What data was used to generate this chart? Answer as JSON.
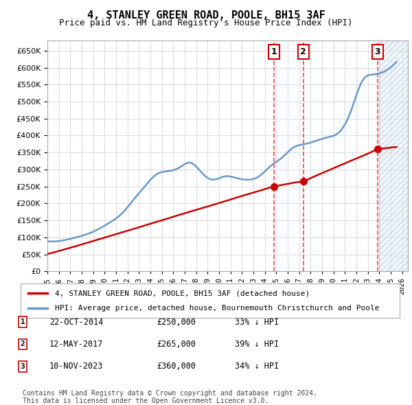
{
  "title": "4, STANLEY GREEN ROAD, POOLE, BH15 3AF",
  "subtitle": "Price paid vs. HM Land Registry's House Price Index (HPI)",
  "ylabel": "",
  "ylim": [
    0,
    680000
  ],
  "yticks": [
    0,
    50000,
    100000,
    150000,
    200000,
    250000,
    300000,
    350000,
    400000,
    450000,
    500000,
    550000,
    600000,
    650000
  ],
  "legend_line1": "4, STANLEY GREEN ROAD, POOLE, BH15 3AF (detached house)",
  "legend_line2": "HPI: Average price, detached house, Bournemouth Christchurch and Poole",
  "transactions": [
    {
      "num": 1,
      "date": "22-OCT-2014",
      "price": 250000,
      "pct": "33%",
      "dir": "↓",
      "x": 2014.81
    },
    {
      "num": 2,
      "date": "12-MAY-2017",
      "price": 265000,
      "pct": "39%",
      "dir": "↓",
      "x": 2017.36
    },
    {
      "num": 3,
      "date": "10-NOV-2023",
      "price": 360000,
      "pct": "34%",
      "dir": "↓",
      "x": 2023.86
    }
  ],
  "footnote1": "Contains HM Land Registry data © Crown copyright and database right 2024.",
  "footnote2": "This data is licensed under the Open Government Licence v3.0.",
  "hpi_color": "#6699cc",
  "price_color": "#cc0000",
  "transaction_box_color": "#cc0000",
  "vline_color": "#ff4444",
  "shade_color": "#ddeeff",
  "hatch_color": "#aabbcc",
  "background_color": "#ffffff",
  "grid_color": "#dddddd",
  "xlim_left": 1995.0,
  "xlim_right": 2026.5,
  "xticks": [
    1995,
    1996,
    1997,
    1998,
    1999,
    2000,
    2001,
    2002,
    2003,
    2004,
    2005,
    2006,
    2007,
    2008,
    2009,
    2010,
    2011,
    2012,
    2013,
    2014,
    2015,
    2016,
    2017,
    2018,
    2019,
    2020,
    2021,
    2022,
    2023,
    2024,
    2025,
    2026
  ]
}
